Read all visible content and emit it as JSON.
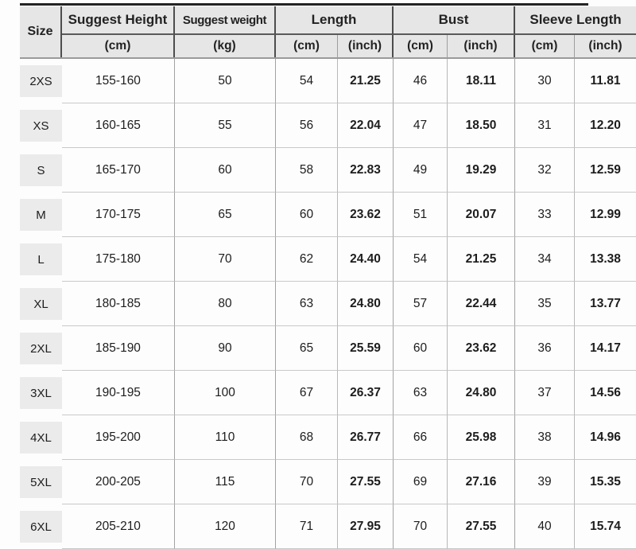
{
  "table": {
    "header": {
      "size": "Size",
      "height_label": "Suggest Height",
      "weight_label": "Suggest weight",
      "length_label": "Length",
      "bust_label": "Bust",
      "sleeve_label": "Sleeve Length",
      "unit_cm": "(cm)",
      "unit_kg": "(kg)",
      "unit_inch": "(inch)"
    },
    "colors": {
      "accent_red": "#b63732",
      "header_bg": "#e6e6e6",
      "size_box_bg": "#ebebeb",
      "text_dark": "#1f1f1f"
    },
    "rows": [
      {
        "size": "2XS",
        "height": "155-160",
        "weight": "50",
        "length_cm": "54",
        "length_inch": "21.25",
        "bust_cm": "46",
        "bust_inch": "18.11",
        "sleeve_cm": "30",
        "sleeve_inch": "11.81"
      },
      {
        "size": "XS",
        "height": "160-165",
        "weight": "55",
        "length_cm": "56",
        "length_inch": "22.04",
        "bust_cm": "47",
        "bust_inch": "18.50",
        "sleeve_cm": "31",
        "sleeve_inch": "12.20"
      },
      {
        "size": "S",
        "height": "165-170",
        "weight": "60",
        "length_cm": "58",
        "length_inch": "22.83",
        "bust_cm": "49",
        "bust_inch": "19.29",
        "sleeve_cm": "32",
        "sleeve_inch": "12.59"
      },
      {
        "size": "M",
        "height": "170-175",
        "weight": "65",
        "length_cm": "60",
        "length_inch": "23.62",
        "bust_cm": "51",
        "bust_inch": "20.07",
        "sleeve_cm": "33",
        "sleeve_inch": "12.99"
      },
      {
        "size": "L",
        "height": "175-180",
        "weight": "70",
        "length_cm": "62",
        "length_inch": "24.40",
        "bust_cm": "54",
        "bust_inch": "21.25",
        "sleeve_cm": "34",
        "sleeve_inch": "13.38"
      },
      {
        "size": "XL",
        "height": "180-185",
        "weight": "80",
        "length_cm": "63",
        "length_inch": "24.80",
        "bust_cm": "57",
        "bust_inch": "22.44",
        "sleeve_cm": "35",
        "sleeve_inch": "13.77"
      },
      {
        "size": "2XL",
        "height": "185-190",
        "weight": "90",
        "length_cm": "65",
        "length_inch": "25.59",
        "bust_cm": "60",
        "bust_inch": "23.62",
        "sleeve_cm": "36",
        "sleeve_inch": "14.17"
      },
      {
        "size": "3XL",
        "height": "190-195",
        "weight": "100",
        "length_cm": "67",
        "length_inch": "26.37",
        "bust_cm": "63",
        "bust_inch": "24.80",
        "sleeve_cm": "37",
        "sleeve_inch": "14.56"
      },
      {
        "size": "4XL",
        "height": "195-200",
        "weight": "110",
        "length_cm": "68",
        "length_inch": "26.77",
        "bust_cm": "66",
        "bust_inch": "25.98",
        "sleeve_cm": "38",
        "sleeve_inch": "14.96"
      },
      {
        "size": "5XL",
        "height": "200-205",
        "weight": "115",
        "length_cm": "70",
        "length_inch": "27.55",
        "bust_cm": "69",
        "bust_inch": "27.16",
        "sleeve_cm": "39",
        "sleeve_inch": "15.35"
      },
      {
        "size": "6XL",
        "height": "205-210",
        "weight": "120",
        "length_cm": "71",
        "length_inch": "27.95",
        "bust_cm": "70",
        "bust_inch": "27.55",
        "sleeve_cm": "40",
        "sleeve_inch": "15.74"
      }
    ]
  },
  "chart_data": {
    "type": "table",
    "title": "Garment size chart",
    "columns": [
      "Size",
      "Suggest Height (cm)",
      "Suggest weight (kg)",
      "Length (cm)",
      "Length (inch)",
      "Bust (cm)",
      "Bust (inch)",
      "Sleeve Length (cm)",
      "Sleeve Length (inch)"
    ],
    "rows": [
      [
        "2XS",
        "155-160",
        50,
        54,
        21.25,
        46,
        18.11,
        30,
        11.81
      ],
      [
        "XS",
        "160-165",
        55,
        56,
        22.04,
        47,
        18.5,
        31,
        12.2
      ],
      [
        "S",
        "165-170",
        60,
        58,
        22.83,
        49,
        19.29,
        32,
        12.59
      ],
      [
        "M",
        "170-175",
        65,
        60,
        23.62,
        51,
        20.07,
        33,
        12.99
      ],
      [
        "L",
        "175-180",
        70,
        62,
        24.4,
        54,
        21.25,
        34,
        13.38
      ],
      [
        "XL",
        "180-185",
        80,
        63,
        24.8,
        57,
        22.44,
        35,
        13.77
      ],
      [
        "2XL",
        "185-190",
        90,
        65,
        25.59,
        60,
        23.62,
        36,
        14.17
      ],
      [
        "3XL",
        "190-195",
        100,
        67,
        26.37,
        63,
        24.8,
        37,
        14.56
      ],
      [
        "4XL",
        "195-200",
        110,
        68,
        26.77,
        66,
        25.98,
        38,
        14.96
      ],
      [
        "5XL",
        "200-205",
        115,
        70,
        27.55,
        69,
        27.16,
        39,
        15.35
      ],
      [
        "6XL",
        "205-210",
        120,
        71,
        27.95,
        70,
        27.55,
        40,
        15.74
      ]
    ],
    "notes": "inch columns rendered in red; header row gray background"
  }
}
